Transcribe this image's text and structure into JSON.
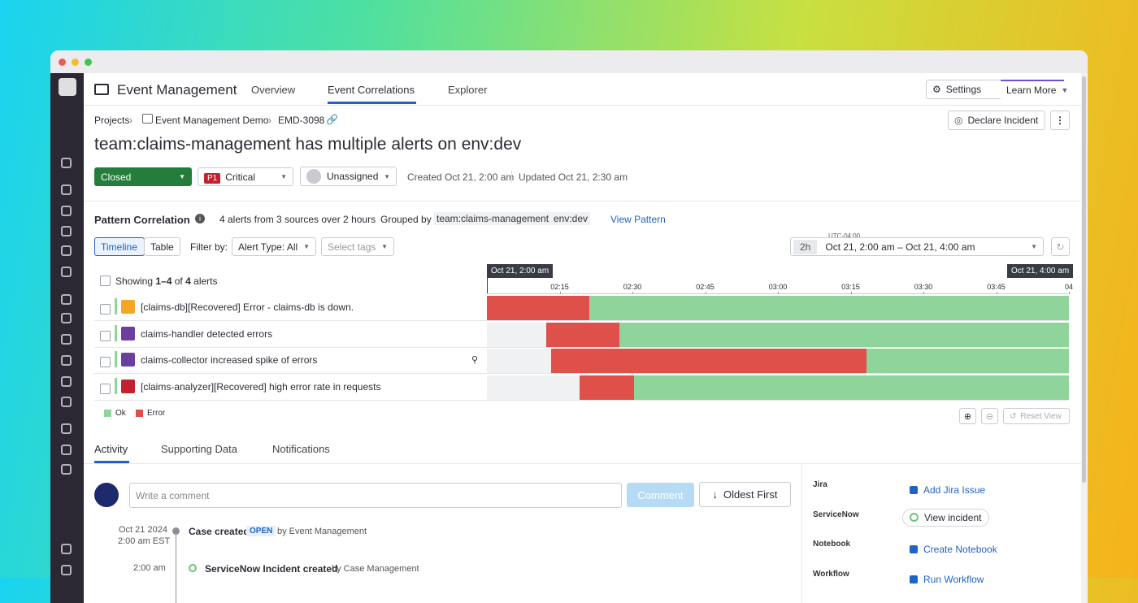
{
  "app": {
    "title": "Event Management",
    "tabs": [
      "Overview",
      "Event Correlations",
      "Explorer"
    ],
    "settings": "Settings",
    "learn_more": "Learn More"
  },
  "breadcrumb": [
    "Projects",
    "Event Management Demo",
    "EMD-3098"
  ],
  "declare": "Declare Incident",
  "case": {
    "title": "team:claims-management has multiple alerts on env:dev",
    "status": "Closed",
    "priority_badge": "P1",
    "priority": "Critical",
    "assignee": "Unassigned",
    "created": "Created Oct 21, 2:00 am",
    "updated": "Updated Oct 21, 2:30 am"
  },
  "pattern": {
    "title": "Pattern Correlation",
    "summary": "4 alerts from 3 sources over 2 hours",
    "grouped_by": "Grouped by",
    "tags": [
      "team:claims-management",
      "env:dev"
    ],
    "view": "View Pattern",
    "views": [
      "Timeline",
      "Table"
    ],
    "filter_by": "Filter by:",
    "alert_type": "Alert Type: All",
    "select_tags": "Select tags",
    "timezone": "UTC-04:00",
    "range_short": "2h",
    "range": "Oct 21, 2:00 am – Oct 21, 4:00 am",
    "showing_prefix": "Showing",
    "showing_range": "1–4",
    "showing_of": "of",
    "showing_total": "4",
    "showing_suffix": "alerts",
    "start_label": "Oct 21, 2:00 am",
    "end_label": "Oct 21, 4:00 am",
    "ticks": [
      "02:15",
      "02:30",
      "02:45",
      "03:00",
      "03:15",
      "03:30",
      "03:45",
      "04"
    ],
    "alerts": [
      "[claims-db][Recovered] Error - claims-db is down.",
      "claims-handler detected errors",
      "claims-collector increased spike of errors",
      "[claims-analyzer][Recovered] high error rate in requests"
    ],
    "legend": [
      "Ok",
      "Error"
    ],
    "reset": "Reset View"
  },
  "tabs": [
    "Activity",
    "Supporting Data",
    "Notifications"
  ],
  "activity": {
    "placeholder": "Write a comment",
    "comment": "Comment",
    "sort": "Oldest First",
    "events": [
      {
        "date": "Oct 21 2024",
        "time": "2:00 am EST",
        "title": "Case created",
        "badge": "OPEN",
        "by": "by Event Management"
      },
      {
        "time": "2:00 am",
        "title": "ServiceNow Incident created",
        "by": "by Case Management"
      }
    ]
  },
  "integrations": [
    {
      "name": "Jira",
      "action": "Add Jira Issue"
    },
    {
      "name": "ServiceNow",
      "action": "View incident"
    },
    {
      "name": "Notebook",
      "action": "Create Notebook"
    },
    {
      "name": "Workflow",
      "action": "Run Workflow"
    }
  ]
}
